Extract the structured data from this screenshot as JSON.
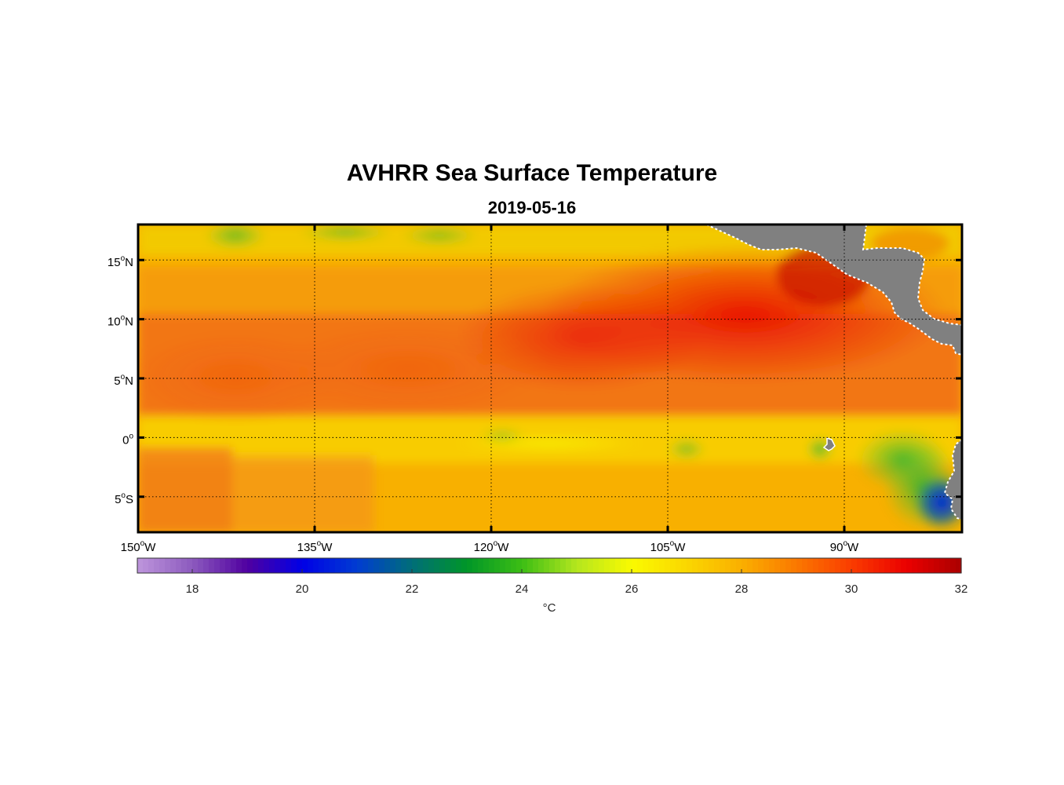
{
  "title": "AVHRR Sea Surface Temperature",
  "subtitle": "2019-05-16",
  "map": {
    "lon_range": [
      -150,
      -80
    ],
    "lat_range": [
      -8,
      18
    ],
    "lon_ticks": [
      {
        "value": -150,
        "num": "150",
        "dir": "W"
      },
      {
        "value": -135,
        "num": "135",
        "dir": "W"
      },
      {
        "value": -120,
        "num": "120",
        "dir": "W"
      },
      {
        "value": -105,
        "num": "105",
        "dir": "W"
      },
      {
        "value": -90,
        "num": "90",
        "dir": "W"
      }
    ],
    "lat_ticks": [
      {
        "value": 15,
        "num": "15",
        "dir": "N"
      },
      {
        "value": 10,
        "num": "10",
        "dir": "N"
      },
      {
        "value": 5,
        "num": "5",
        "dir": "N"
      },
      {
        "value": 0,
        "num": "0",
        "dir": ""
      },
      {
        "value": -5,
        "num": "5",
        "dir": "S"
      }
    ],
    "degree_symbol": "o",
    "land_color": "#808080"
  },
  "colorbar": {
    "min": 17,
    "max": 32,
    "ticks": [
      "18",
      "20",
      "22",
      "24",
      "26",
      "28",
      "30",
      "32"
    ],
    "units": "°C"
  }
}
